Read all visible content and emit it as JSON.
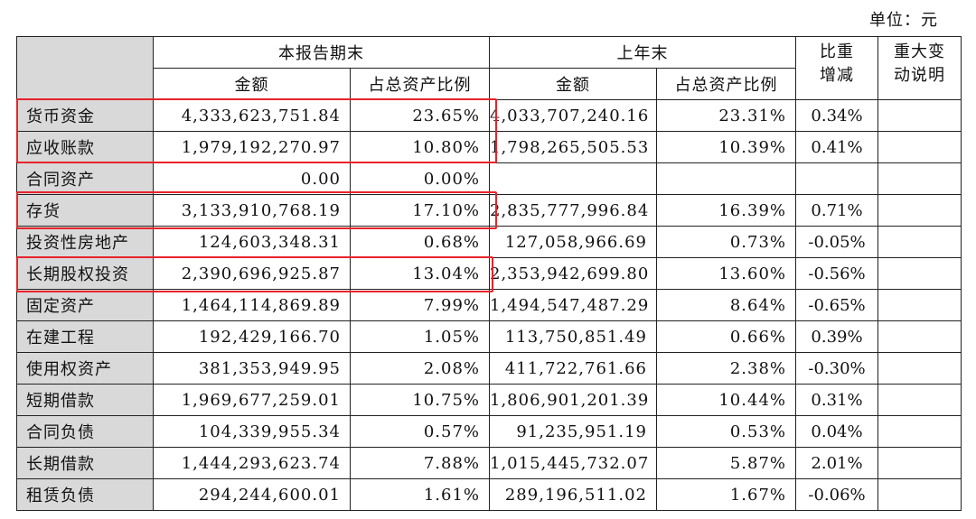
{
  "unit_label": "单位：元",
  "header": {
    "current_period": "本报告期末",
    "prior_year": "上年末",
    "weight_change": "比重增减",
    "major_change_note": "重大变动说明",
    "amount": "金额",
    "ratio": "占总资产比例"
  },
  "rows": [
    {
      "item": "货币资金",
      "cur_amount": "4,333,623,751.84",
      "cur_ratio": "23.65%",
      "prev_amount": "4,033,707,240.16",
      "prev_ratio": "23.31%",
      "change": "0.34%",
      "note": ""
    },
    {
      "item": "应收账款",
      "cur_amount": "1,979,192,270.97",
      "cur_ratio": "10.80%",
      "prev_amount": "1,798,265,505.53",
      "prev_ratio": "10.39%",
      "change": "0.41%",
      "note": ""
    },
    {
      "item": "合同资产",
      "cur_amount": "0.00",
      "cur_ratio": "0.00%",
      "prev_amount": "",
      "prev_ratio": "",
      "change": "",
      "note": ""
    },
    {
      "item": "存货",
      "cur_amount": "3,133,910,768.19",
      "cur_ratio": "17.10%",
      "prev_amount": "2,835,777,996.84",
      "prev_ratio": "16.39%",
      "change": "0.71%",
      "note": ""
    },
    {
      "item": "投资性房地产",
      "cur_amount": "124,603,348.31",
      "cur_ratio": "0.68%",
      "prev_amount": "127,058,966.69",
      "prev_ratio": "0.73%",
      "change": "-0.05%",
      "note": ""
    },
    {
      "item": "长期股权投资",
      "cur_amount": "2,390,696,925.87",
      "cur_ratio": "13.04%",
      "prev_amount": "2,353,942,699.80",
      "prev_ratio": "13.60%",
      "change": "-0.56%",
      "note": ""
    },
    {
      "item": "固定资产",
      "cur_amount": "1,464,114,869.89",
      "cur_ratio": "7.99%",
      "prev_amount": "1,494,547,487.29",
      "prev_ratio": "8.64%",
      "change": "-0.65%",
      "note": ""
    },
    {
      "item": "在建工程",
      "cur_amount": "192,429,166.70",
      "cur_ratio": "1.05%",
      "prev_amount": "113,750,851.49",
      "prev_ratio": "0.66%",
      "change": "0.39%",
      "note": ""
    },
    {
      "item": "使用权资产",
      "cur_amount": "381,353,949.95",
      "cur_ratio": "2.08%",
      "prev_amount": "411,722,761.66",
      "prev_ratio": "2.38%",
      "change": "-0.30%",
      "note": ""
    },
    {
      "item": "短期借款",
      "cur_amount": "1,969,677,259.01",
      "cur_ratio": "10.75%",
      "prev_amount": "1,806,901,201.39",
      "prev_ratio": "10.44%",
      "change": "0.31%",
      "note": ""
    },
    {
      "item": "合同负债",
      "cur_amount": "104,339,955.34",
      "cur_ratio": "0.57%",
      "prev_amount": "91,235,951.19",
      "prev_ratio": "0.53%",
      "change": "0.04%",
      "note": ""
    },
    {
      "item": "长期借款",
      "cur_amount": "1,444,293,623.74",
      "cur_ratio": "7.88%",
      "prev_amount": "1,015,445,732.07",
      "prev_ratio": "5.87%",
      "change": "2.01%",
      "note": ""
    },
    {
      "item": "租赁负债",
      "cur_amount": "294,244,600.01",
      "cur_ratio": "1.61%",
      "prev_amount": "289,196,511.02",
      "prev_ratio": "1.67%",
      "change": "-0.06%",
      "note": ""
    }
  ],
  "colors": {
    "highlight": "#e8232a",
    "label_bg": "#d9d9d9"
  }
}
